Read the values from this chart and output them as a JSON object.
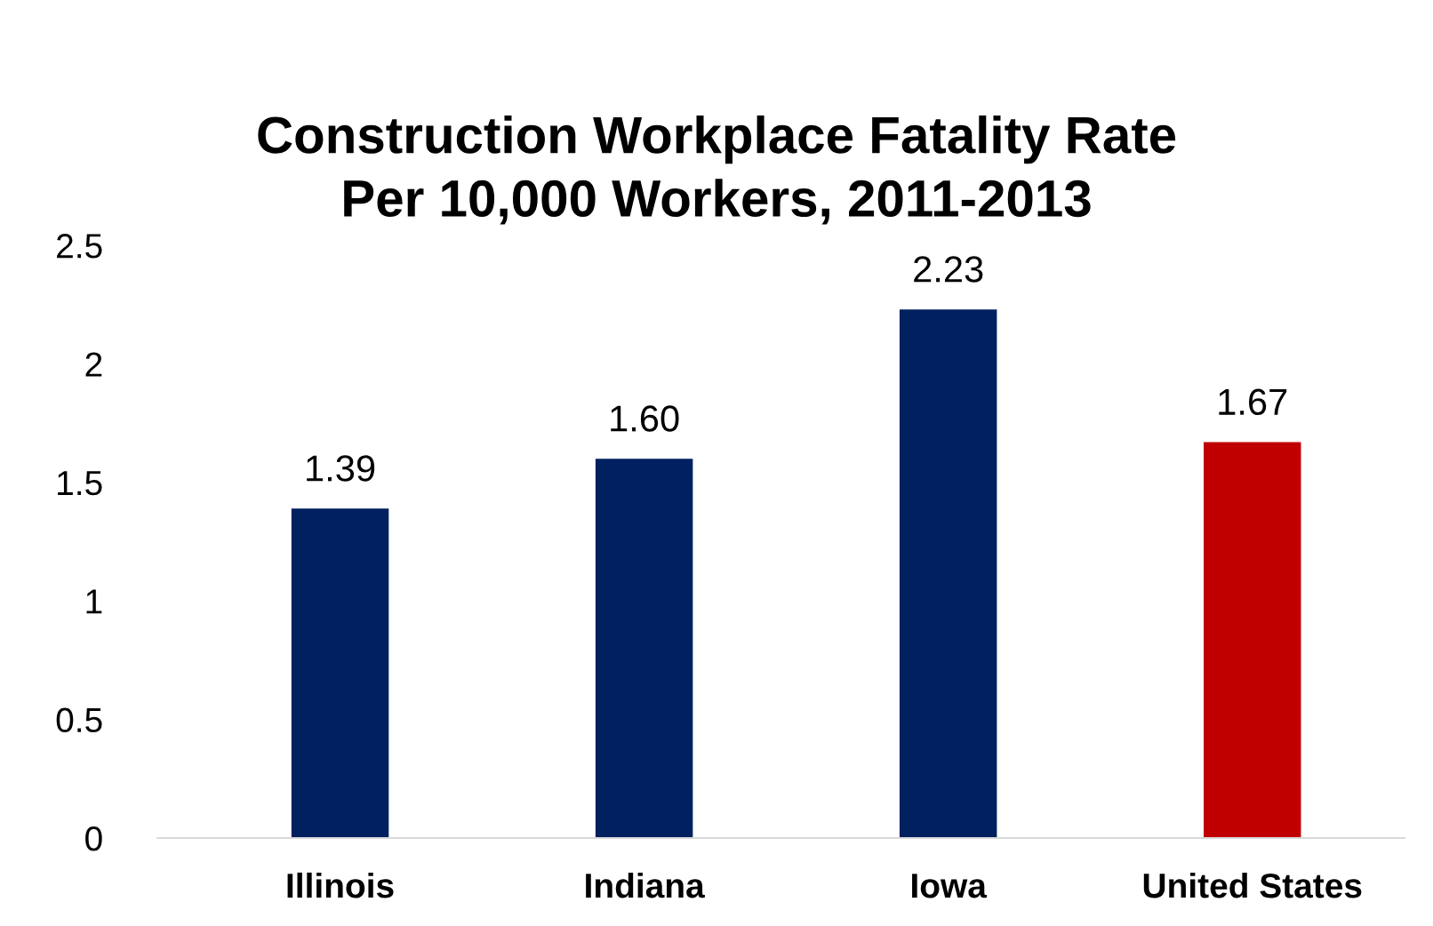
{
  "chart_data": {
    "type": "bar",
    "title": "Construction Workplace Fatality Rate\nPer 10,000 Workers, 2011-2013",
    "categories": [
      "Illinois",
      "Indiana",
      "Iowa",
      "United States"
    ],
    "values": [
      1.39,
      1.6,
      2.23,
      1.67
    ],
    "colors": [
      "#002060",
      "#002060",
      "#002060",
      "#c00000"
    ],
    "value_labels": [
      "1.39",
      "1.60",
      "2.23",
      "1.67"
    ],
    "ylim": [
      0,
      2.5
    ],
    "yticks": [
      {
        "value": 0,
        "label": "0"
      },
      0.5,
      1,
      1.5,
      2,
      2.5
    ],
    "grid": false,
    "legend": false
  }
}
